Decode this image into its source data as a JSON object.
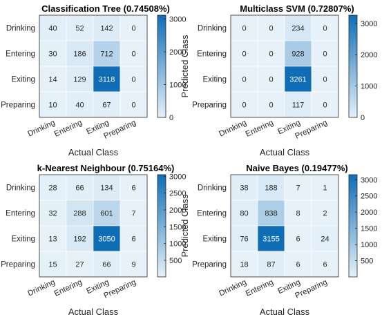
{
  "chart_data": [
    {
      "type": "heatmap",
      "title": "Classification Tree (0.74508%)",
      "xlabel": "Actual Class",
      "ylabel": "Predicted Class",
      "x_categories": [
        "Drinking",
        "Entering",
        "Exiting",
        "Preparing"
      ],
      "y_categories": [
        "Drinking",
        "Entering",
        "Exiting",
        "Preparing"
      ],
      "values": [
        [
          40,
          52,
          142,
          0
        ],
        [
          30,
          186,
          712,
          0
        ],
        [
          14,
          129,
          3118,
          0
        ],
        [
          10,
          40,
          67,
          0
        ]
      ],
      "colorbar": {
        "range": [
          0,
          3118
        ],
        "ticks": [
          0,
          1000,
          2000,
          3000
        ]
      },
      "colormap": [
        "#e6f1f9",
        "#0f6db6"
      ]
    },
    {
      "type": "heatmap",
      "title": "Multiclass SVM (0.72807%)",
      "xlabel": "Actual Class",
      "ylabel": "Predicted Class",
      "x_categories": [
        "Drinking",
        "Entering",
        "Exiting",
        "Preparing"
      ],
      "y_categories": [
        "Drinking",
        "Entering",
        "Exiting",
        "Preparing"
      ],
      "values": [
        [
          0,
          0,
          234,
          0
        ],
        [
          0,
          0,
          928,
          0
        ],
        [
          0,
          0,
          3261,
          0
        ],
        [
          0,
          0,
          117,
          0
        ]
      ],
      "colorbar": {
        "range": [
          0,
          3261
        ],
        "ticks": [
          0,
          1000,
          2000,
          3000
        ]
      },
      "colormap": [
        "#e6f1f9",
        "#0f6db6"
      ]
    },
    {
      "type": "heatmap",
      "title": "k-Nearest Neighbour (0.75164%)",
      "xlabel": "Actual Class",
      "ylabel": "Predicted Class",
      "x_categories": [
        "Drinking",
        "Entering",
        "Exiting",
        "Preparing"
      ],
      "y_categories": [
        "Drinking",
        "Entering",
        "Exiting",
        "Preparing"
      ],
      "values": [
        [
          28,
          66,
          134,
          6
        ],
        [
          32,
          288,
          601,
          7
        ],
        [
          13,
          192,
          3050,
          6
        ],
        [
          15,
          27,
          66,
          9
        ]
      ],
      "colorbar": {
        "range": [
          6,
          3050
        ],
        "ticks": [
          500,
          1000,
          1500,
          2000,
          2500,
          3000
        ]
      },
      "colormap": [
        "#e6f1f9",
        "#0f6db6"
      ]
    },
    {
      "type": "heatmap",
      "title": "Naive Bayes (0.19477%)",
      "xlabel": "Actual Class",
      "ylabel": "Predicted Class",
      "x_categories": [
        "Drinking",
        "Entering",
        "Exiting",
        "Preparing"
      ],
      "y_categories": [
        "Drinking",
        "Entering",
        "Exiting",
        "Preparing"
      ],
      "values": [
        [
          38,
          188,
          7,
          1
        ],
        [
          80,
          838,
          8,
          2
        ],
        [
          76,
          3155,
          6,
          24
        ],
        [
          18,
          87,
          6,
          6
        ]
      ],
      "colorbar": {
        "range": [
          1,
          3155
        ],
        "ticks": [
          500,
          1000,
          1500,
          2000,
          2500,
          3000
        ]
      },
      "colormap": [
        "#e6f1f9",
        "#0f6db6"
      ]
    }
  ]
}
